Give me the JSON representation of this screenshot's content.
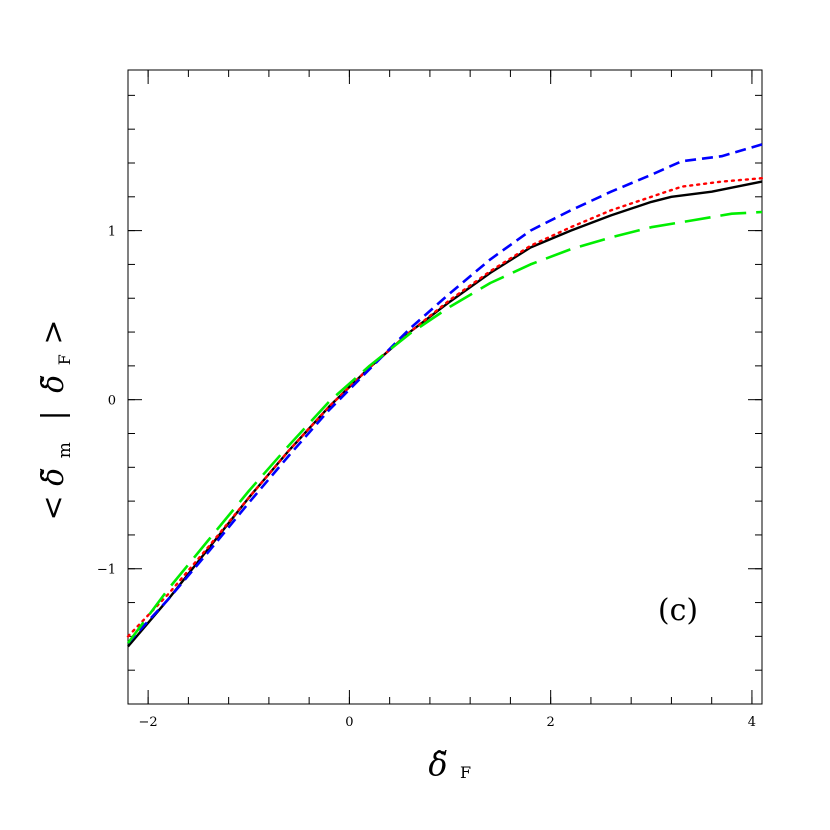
{
  "chart_data": {
    "type": "line",
    "title": "",
    "panel_label": "(c)",
    "xlabel": {
      "base": "δ̃",
      "sub": "F"
    },
    "ylabel": {
      "open": "<",
      "base": "δ̃",
      "sub": "m",
      "bar": "|",
      "base2": "δ̃",
      "sub2": "F",
      "close": ">"
    },
    "xlim": [
      -2.2,
      4.1
    ],
    "ylim": [
      -1.8,
      1.95
    ],
    "x_ticks": [
      -2,
      0,
      2,
      4
    ],
    "x_tick_labels": [
      "−2",
      "0",
      "2",
      "4"
    ],
    "y_ticks": [
      -1,
      0,
      1
    ],
    "y_tick_labels": [
      "−1",
      "0",
      "1"
    ],
    "x_minor_step": 0.4,
    "y_minor_step": 0.2,
    "grid": false,
    "legend": "none",
    "series": [
      {
        "color": "#000000",
        "dash": "solid",
        "x": [
          -2.2,
          -1.8,
          -1.4,
          -1.0,
          -0.6,
          -0.2,
          0.2,
          0.6,
          1.0,
          1.4,
          1.8,
          2.2,
          2.6,
          3.0,
          3.2,
          3.6,
          4.1
        ],
        "y": [
          -1.46,
          -1.18,
          -0.88,
          -0.58,
          -0.3,
          -0.04,
          0.19,
          0.4,
          0.58,
          0.75,
          0.9,
          1.0,
          1.09,
          1.17,
          1.2,
          1.23,
          1.29
        ]
      },
      {
        "color": "#ff0000",
        "dash": "dotted",
        "x": [
          -2.2,
          -1.8,
          -1.4,
          -1.0,
          -0.6,
          -0.2,
          0.2,
          0.6,
          1.0,
          1.4,
          1.8,
          2.2,
          2.6,
          3.0,
          3.3,
          3.7,
          4.1
        ],
        "y": [
          -1.4,
          -1.15,
          -0.87,
          -0.58,
          -0.3,
          -0.04,
          0.19,
          0.4,
          0.59,
          0.76,
          0.91,
          1.02,
          1.12,
          1.2,
          1.26,
          1.29,
          1.31
        ]
      },
      {
        "color": "#0000ff",
        "dash": "short-dash",
        "x": [
          -2.2,
          -1.8,
          -1.4,
          -1.0,
          -0.6,
          -0.2,
          0.2,
          0.6,
          1.0,
          1.4,
          1.8,
          2.2,
          2.6,
          3.0,
          3.3,
          3.7,
          4.1
        ],
        "y": [
          -1.44,
          -1.18,
          -0.9,
          -0.61,
          -0.33,
          -0.06,
          0.18,
          0.42,
          0.63,
          0.83,
          1.0,
          1.12,
          1.23,
          1.33,
          1.41,
          1.44,
          1.51
        ]
      },
      {
        "color": "#00ee00",
        "dash": "long-dash",
        "x": [
          -2.2,
          -1.8,
          -1.4,
          -1.0,
          -0.6,
          -0.2,
          0.2,
          0.6,
          1.0,
          1.4,
          1.8,
          2.2,
          2.6,
          3.0,
          3.4,
          3.8,
          4.1
        ],
        "y": [
          -1.44,
          -1.12,
          -0.83,
          -0.54,
          -0.27,
          -0.01,
          0.2,
          0.39,
          0.55,
          0.69,
          0.8,
          0.89,
          0.96,
          1.02,
          1.06,
          1.1,
          1.11
        ]
      }
    ]
  }
}
